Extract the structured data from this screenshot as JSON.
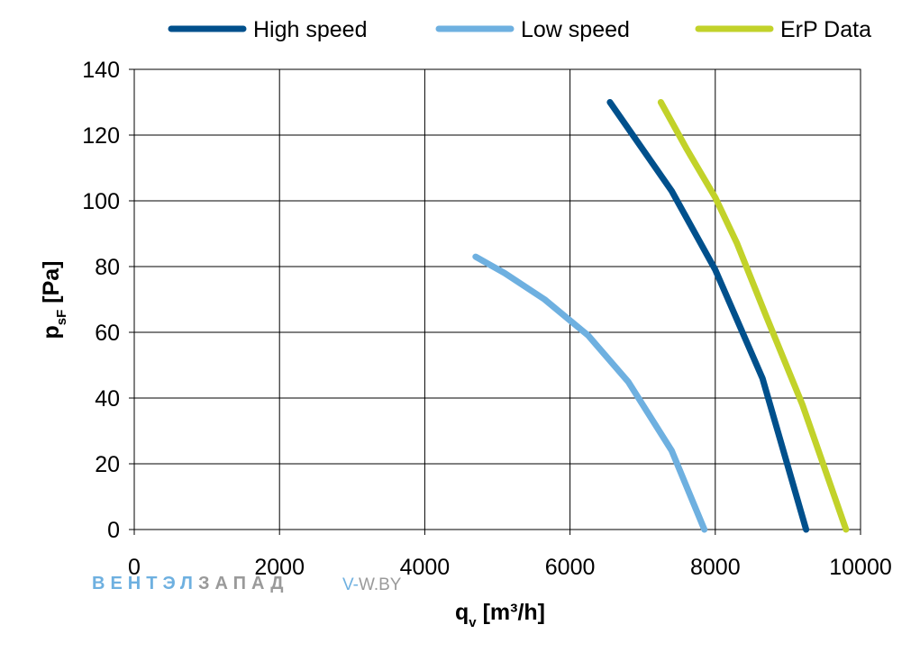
{
  "chart_data": {
    "type": "line",
    "xlabel": {
      "main": "q",
      "sub": "v",
      "rest": " [m³/h]"
    },
    "ylabel": {
      "main": "p",
      "sub": "sF",
      "rest": " [Pa]"
    },
    "xlim": [
      0,
      10000
    ],
    "ylim": [
      0,
      140
    ],
    "xticks": [
      0,
      2000,
      4000,
      6000,
      8000,
      10000
    ],
    "yticks": [
      0,
      20,
      40,
      60,
      80,
      100,
      120,
      140
    ],
    "grid": true,
    "legend_position": "top",
    "series": [
      {
        "name": "High speed",
        "color": "#00508c",
        "x": [
          6550,
          7400,
          8000,
          8650,
          9250
        ],
        "y": [
          130,
          103,
          79,
          46,
          0
        ]
      },
      {
        "name": "Low speed",
        "color": "#6eb0e0",
        "x": [
          4700,
          5100,
          5650,
          6250,
          6800,
          7400,
          7850
        ],
        "y": [
          83,
          78,
          70,
          59,
          45,
          24,
          0
        ]
      },
      {
        "name": "ErP Data",
        "color": "#c2d22a",
        "x": [
          7250,
          7600,
          8000,
          8300,
          8700,
          9200,
          9800
        ],
        "y": [
          130,
          116,
          101,
          87,
          65,
          38,
          0
        ]
      }
    ]
  },
  "watermark": {
    "brand_part1": "ВЕНТЭЛ",
    "brand_part2": "ЗАПАД",
    "url_part1": "V-",
    "url_part2": "W.BY",
    "color1": "#6eb0e0",
    "color2": "#9a9a9a"
  }
}
